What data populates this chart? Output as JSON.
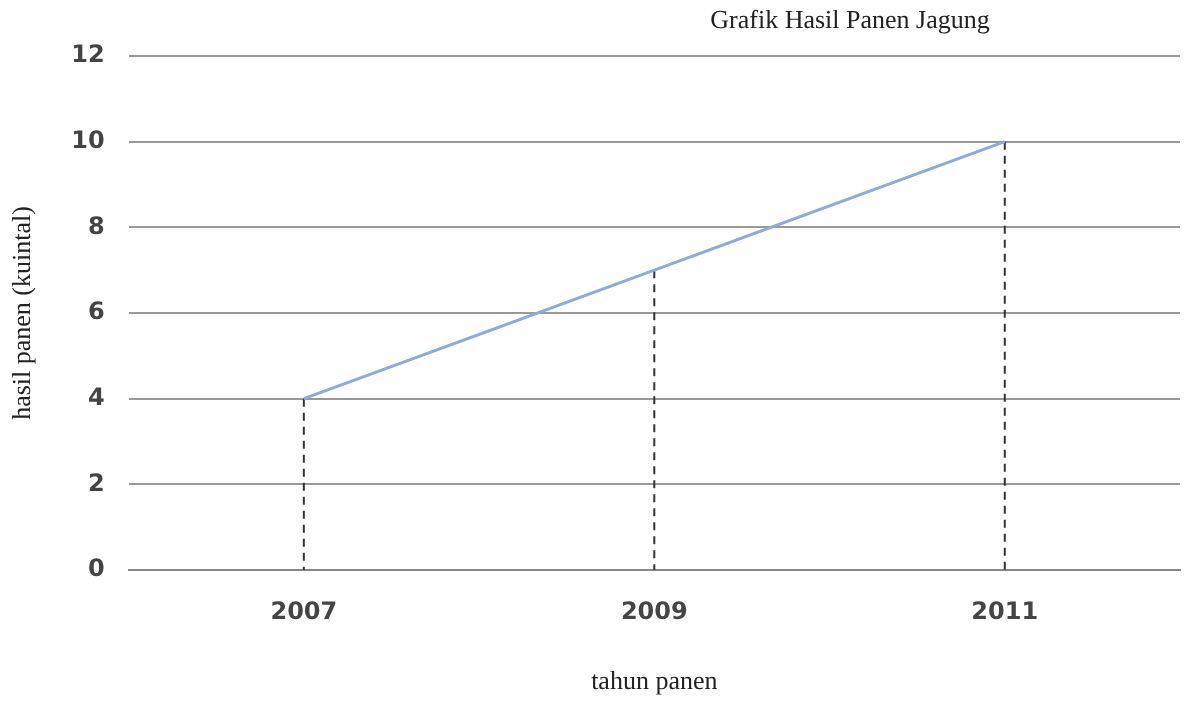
{
  "chart_data": {
    "type": "line",
    "title": "Grafik Hasil Panen Jagung",
    "xlabel": "tahun panen",
    "ylabel": "hasil panen (kuintal)",
    "categories": [
      "2007",
      "2009",
      "2011"
    ],
    "series": [
      {
        "color": "#8eaadb",
        "values": [
          4,
          7,
          10
        ],
        "errors": [
          [
            0,
            4
          ],
          [
            0,
            7
          ],
          [
            0,
            10
          ]
        ]
      }
    ],
    "ylim": [
      0,
      12
    ],
    "yticks": [
      0,
      2,
      4,
      6,
      8,
      10,
      12
    ],
    "grid": "y",
    "legend": false,
    "marker": "none"
  }
}
